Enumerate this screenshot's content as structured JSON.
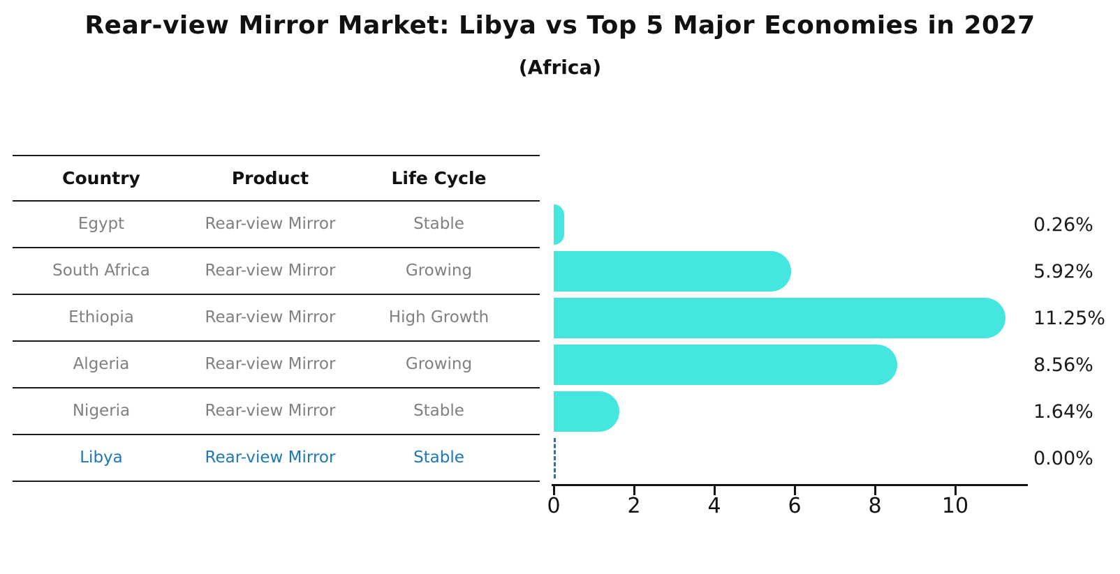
{
  "title": "Rear-view Mirror Market: Libya vs Top 5 Major Economies in 2027",
  "subtitle": "(Africa)",
  "table": {
    "columns": [
      "Country",
      "Product",
      "Life Cycle"
    ],
    "rows": [
      {
        "country": "Egypt",
        "product": "Rear-view Mirror",
        "life_cycle": "Stable",
        "highlight": false
      },
      {
        "country": "South Africa",
        "product": "Rear-view Mirror",
        "life_cycle": "Growing",
        "highlight": false
      },
      {
        "country": "Ethiopia",
        "product": "Rear-view Mirror",
        "life_cycle": "High Growth",
        "highlight": false
      },
      {
        "country": "Algeria",
        "product": "Rear-view Mirror",
        "life_cycle": "Growing",
        "highlight": false
      },
      {
        "country": "Nigeria",
        "product": "Rear-view Mirror",
        "life_cycle": "Stable",
        "highlight": false
      },
      {
        "country": "Libya",
        "product": "Rear-view Mirror",
        "life_cycle": "Stable",
        "highlight": true
      }
    ]
  },
  "chart_data": {
    "type": "bar",
    "orientation": "horizontal",
    "title": "Rear-view Mirror Market: Libya vs Top 5 Major Economies in 2027",
    "subtitle": "(Africa)",
    "categories": [
      "Egypt",
      "South Africa",
      "Ethiopia",
      "Algeria",
      "Nigeria",
      "Libya"
    ],
    "values": [
      0.26,
      5.92,
      11.25,
      8.56,
      1.64,
      0.0
    ],
    "value_labels": [
      "0.26%",
      "5.92%",
      "11.25%",
      "8.56%",
      "1.64%",
      "0.00%"
    ],
    "x_ticks": [
      0,
      2,
      4,
      6,
      8,
      10
    ],
    "xlim": [
      0,
      11.8
    ],
    "xlabel": "",
    "ylabel": "",
    "grid": false,
    "legend": null,
    "bar_color": "#45E6E0",
    "highlight": {
      "category": "Libya",
      "style": "dashed-outline-zero-width",
      "color": "#1f77b4"
    }
  },
  "colors": {
    "background": "#ffffff",
    "bar": "#45E6E0",
    "highlight_blue": "#1f77b4",
    "row_text": "#808080",
    "header_text": "#111111",
    "line": "#1a1a1a"
  }
}
